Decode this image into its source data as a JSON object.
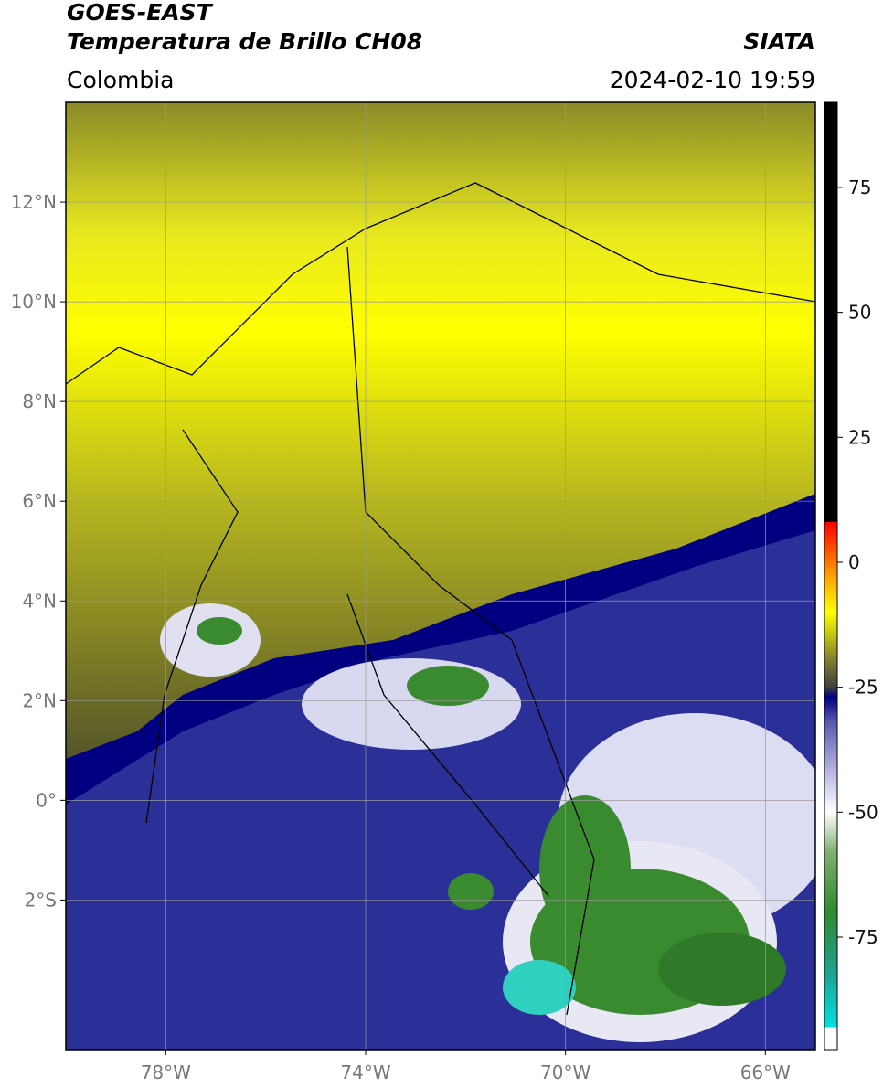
{
  "header": {
    "title": "GOES-EAST",
    "subtitle": "Temperatura de Brillo CH08",
    "region": "Colombia",
    "source": "SIATA",
    "datetime": "2024-02-10 19:59"
  },
  "map": {
    "xlim": [
      -80,
      -65
    ],
    "ylim": [
      -5,
      14
    ],
    "xticks": [
      {
        "value": -78,
        "label": "78°W"
      },
      {
        "value": -74,
        "label": "74°W"
      },
      {
        "value": -70,
        "label": "70°W"
      },
      {
        "value": -66,
        "label": "66°W"
      }
    ],
    "yticks": [
      {
        "value": 12,
        "label": "12°N"
      },
      {
        "value": 10,
        "label": "10°N"
      },
      {
        "value": 8,
        "label": "8°N"
      },
      {
        "value": 6,
        "label": "6°N"
      },
      {
        "value": 4,
        "label": "4°N"
      },
      {
        "value": 2,
        "label": "2°N"
      },
      {
        "value": 0,
        "label": "0°"
      },
      {
        "value": -2,
        "label": "2°S"
      }
    ],
    "grid": true
  },
  "colorbar": {
    "lim": [
      -97.5,
      92
    ],
    "ticks": [
      75,
      50,
      25,
      0,
      -25,
      -50,
      -75
    ],
    "stops": [
      {
        "value": -97.5,
        "color": "#ffffff"
      },
      {
        "value": -93,
        "color": "#ffffff"
      },
      {
        "value": -93,
        "color": "#00e0e0"
      },
      {
        "value": -82,
        "color": "#20a090"
      },
      {
        "value": -70,
        "color": "#2e8b30"
      },
      {
        "value": -58,
        "color": "#80b070"
      },
      {
        "value": -50,
        "color": "#ffffff"
      },
      {
        "value": -42,
        "color": "#b8b8e0"
      },
      {
        "value": -32,
        "color": "#5a5ab0"
      },
      {
        "value": -27,
        "color": "#000080"
      },
      {
        "value": -25,
        "color": "#404040"
      },
      {
        "value": -20,
        "color": "#7a7a30"
      },
      {
        "value": -10,
        "color": "#ffff00"
      },
      {
        "value": -3,
        "color": "#ffa500"
      },
      {
        "value": 8,
        "color": "#ff0000"
      },
      {
        "value": 8,
        "color": "#000000"
      },
      {
        "value": 92,
        "color": "#000000"
      }
    ]
  }
}
